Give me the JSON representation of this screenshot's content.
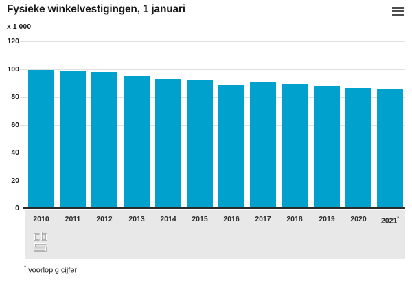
{
  "header": {
    "title": "Fysieke winkelvestigingen, 1 januari",
    "menu_icon": "hamburger-menu"
  },
  "chart_data": {
    "type": "bar",
    "title": "Fysieke winkelvestigingen, 1 januari",
    "unit_label": "x 1 000",
    "categories": [
      "2010",
      "2011",
      "2012",
      "2013",
      "2014",
      "2015",
      "2016",
      "2017",
      "2018",
      "2019",
      "2020",
      "2021*"
    ],
    "values": [
      99.5,
      99.0,
      97.6,
      95.4,
      92.8,
      92.1,
      88.9,
      90.4,
      89.4,
      87.8,
      86.4,
      85.2
    ],
    "xlabel": "",
    "ylabel": "x 1 000",
    "ylim": [
      0,
      120
    ],
    "yticks": [
      0,
      20,
      40,
      60,
      80,
      100,
      120
    ],
    "grid": true,
    "legend_position": "none",
    "footnote": "* voorlopig cijfer",
    "source_logo": "cbs"
  },
  "colors": {
    "bar": "#00a1cd",
    "gridline": "#e0e0e0",
    "axis": "#2b2b2b",
    "band": "#e8e8e8",
    "text": "#1a1a1a",
    "menu": "#4d4d4f",
    "logo_outline": "#a2a2a2"
  }
}
